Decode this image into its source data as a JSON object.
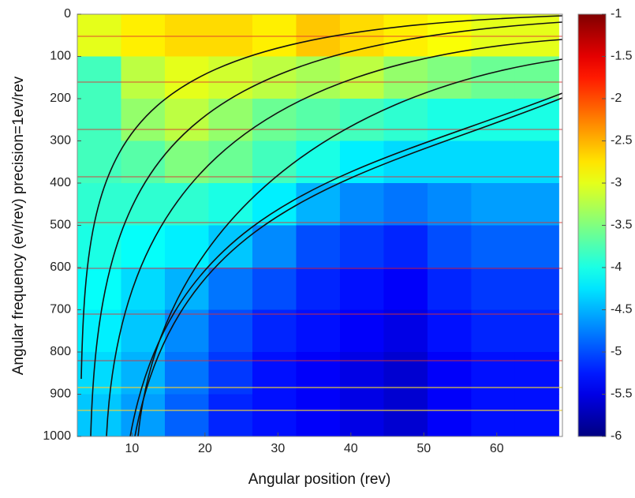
{
  "chart_data": {
    "type": "heatmap",
    "xlabel": "Angular position (rev)",
    "ylabel": "Angular frequency (ev/rev) precision=1ev/rev",
    "xlim": [
      2.5,
      69
    ],
    "ylim": [
      0,
      1000
    ],
    "y_reversed": true,
    "xticks": [
      10,
      20,
      30,
      40,
      50,
      60
    ],
    "yticks": [
      0,
      100,
      200,
      300,
      400,
      500,
      600,
      700,
      800,
      900,
      1000
    ],
    "x_bins": [
      2.5,
      8.5,
      14.5,
      20.5,
      26.5,
      32.5,
      38.5,
      44.5,
      50.5,
      56.5,
      62.5,
      68.5
    ],
    "y_bins": [
      0,
      100,
      200,
      300,
      400,
      500,
      600,
      700,
      800,
      900,
      1000
    ],
    "colormap": "jet",
    "clim": [
      -6,
      -1
    ],
    "cticks": [
      -1,
      -1.5,
      -2,
      -2.5,
      -3,
      -3.5,
      -4,
      -4.5,
      -5,
      -5.5,
      -6
    ],
    "z": [
      [
        -3,
        -2.8,
        -2.7,
        -2.7,
        -2.8,
        -2.6,
        -2.7,
        -2.8,
        -2.9,
        -3,
        -3
      ],
      [
        -3.8,
        -3.2,
        -3.0,
        -3.1,
        -3.2,
        -3.3,
        -3.2,
        -3.4,
        -3.5,
        -3.6,
        -3.6
      ],
      [
        -3.8,
        -3.4,
        -3.2,
        -3.4,
        -3.6,
        -3.7,
        -3.8,
        -3.9,
        -4,
        -4,
        -4
      ],
      [
        -3.8,
        -3.7,
        -3.5,
        -3.6,
        -3.8,
        -4,
        -4.2,
        -4.3,
        -4.3,
        -4.3,
        -4.3
      ],
      [
        -3.9,
        -3.9,
        -3.9,
        -4,
        -4.2,
        -4.5,
        -4.7,
        -4.8,
        -4.7,
        -4.6,
        -4.6
      ],
      [
        -4,
        -4.1,
        -4.2,
        -4.4,
        -4.7,
        -5,
        -5.1,
        -5.2,
        -5,
        -4.9,
        -4.9
      ],
      [
        -4.1,
        -4.3,
        -4.5,
        -4.8,
        -5,
        -5.2,
        -5.3,
        -5.4,
        -5.2,
        -5.1,
        -5.1
      ],
      [
        -4.2,
        -4.4,
        -4.7,
        -5,
        -5.2,
        -5.3,
        -5.4,
        -5.5,
        -5.3,
        -5.2,
        -5.2
      ],
      [
        -4.3,
        -4.5,
        -4.8,
        -5.1,
        -5.3,
        -5.4,
        -5.5,
        -5.6,
        -5.4,
        -5.3,
        -5.3
      ],
      [
        -4.4,
        -4.6,
        -4.9,
        -5.2,
        -5.3,
        -5.4,
        -5.5,
        -5.6,
        -5.4,
        -5.3,
        -5.3
      ]
    ]
  }
}
